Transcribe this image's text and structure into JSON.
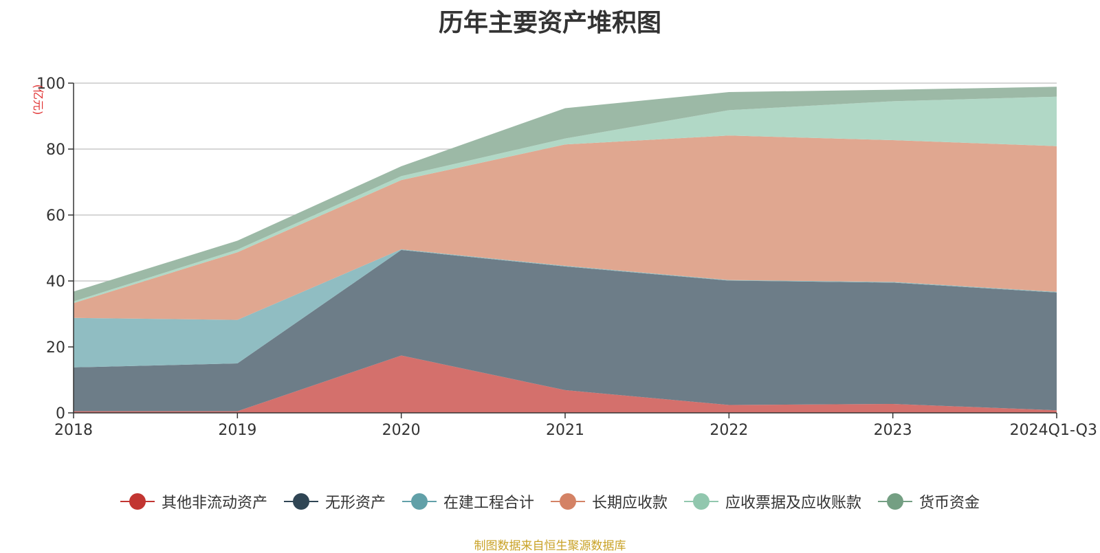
{
  "chart_data": {
    "type": "area",
    "stacked": true,
    "title": "历年主要资产堆积图",
    "ylabel": "(亿元)",
    "xlabel": "",
    "categories": [
      "2018",
      "2019",
      "2020",
      "2021",
      "2022",
      "2023",
      "2024Q1-Q3"
    ],
    "ylim": [
      0,
      100
    ],
    "yticks": [
      0,
      20,
      40,
      60,
      80,
      100
    ],
    "grid": true,
    "legend_position": "bottom",
    "series": [
      {
        "name": "其他非流动资产",
        "color": "#c23531",
        "fill": "#d4706c",
        "values": [
          0.5,
          0.5,
          17.4,
          6.9,
          2.4,
          2.7,
          0.8
        ]
      },
      {
        "name": "无形资产",
        "color": "#2f4554",
        "fill": "#6d7d88",
        "values": [
          13.3,
          14.5,
          32.0,
          37.5,
          37.7,
          36.8,
          35.7
        ]
      },
      {
        "name": "在建工程合计",
        "color": "#61a0a8",
        "fill": "#90bdc2",
        "values": [
          15.0,
          13.2,
          0.2,
          0.2,
          0.2,
          0.2,
          0.2
        ]
      },
      {
        "name": "长期应收款",
        "color": "#d48265",
        "fill": "#e0a790",
        "values": [
          4.5,
          20.5,
          21.0,
          36.8,
          43.8,
          43.0,
          44.2
        ]
      },
      {
        "name": "应收票据及应收账款",
        "color": "#91c7ae",
        "fill": "#b1d8c6",
        "values": [
          0.5,
          0.8,
          1.2,
          1.8,
          7.7,
          11.8,
          15.0
        ]
      },
      {
        "name": "货币资金",
        "color": "#749f83",
        "fill": "#9cb9a6",
        "values": [
          3.0,
          2.7,
          3.0,
          9.2,
          5.5,
          3.5,
          3.0
        ]
      }
    ]
  },
  "source_note": "制图数据来自恒生聚源数据库"
}
